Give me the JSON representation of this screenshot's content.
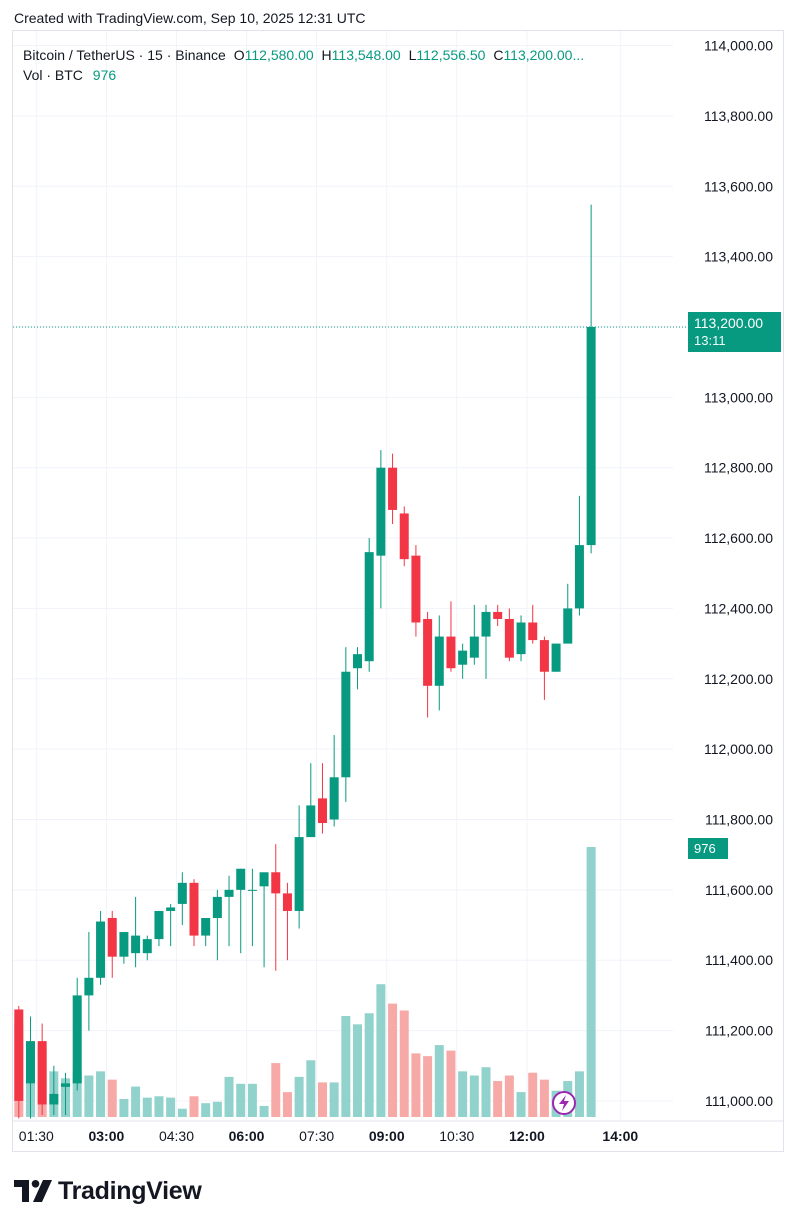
{
  "header": {
    "created_text": "Created with TradingView.com, Sep 10, 2025 12:31 UTC"
  },
  "legend": {
    "symbol": "Bitcoin / TetherUS · 15 · Binance",
    "open_label": "O",
    "open": "112,580.00",
    "high_label": "H",
    "high": "113,548.00",
    "low_label": "L",
    "low": "112,556.50",
    "close_label": "C",
    "close": "113,200.00...",
    "vol_label": "Vol · BTC",
    "vol_value": "976"
  },
  "price_tag": {
    "price": "113,200.00",
    "countdown": "13:11"
  },
  "volume_tag": "976",
  "brand": {
    "name": "TradingView"
  },
  "colors": {
    "up": "#089981",
    "down": "#f23645",
    "up_vol": "#92d2cc",
    "down_vol": "#f7a9a7",
    "grid": "#f0f3fa"
  },
  "chart_data": {
    "type": "candlestick",
    "symbol": "BTCUSDT",
    "interval": "15",
    "y_axis": {
      "range": [
        110960,
        114030
      ],
      "ticks": [
        "114,000.00",
        "113,800.00",
        "113,600.00",
        "113,400.00",
        "113,200.00",
        "113,000.00",
        "112,800.00",
        "112,600.00",
        "112,400.00",
        "112,200.00",
        "112,000.00",
        "111,800.00",
        "111,600.00",
        "111,400.00",
        "111,200.00",
        "111,000.00"
      ]
    },
    "x_axis": {
      "ticks": [
        {
          "label": "01:30",
          "bar": 1.5,
          "bold": false
        },
        {
          "label": "03:00",
          "bar": 7.5,
          "bold": true
        },
        {
          "label": "04:30",
          "bar": 13.5,
          "bold": false
        },
        {
          "label": "06:00",
          "bar": 19.5,
          "bold": true
        },
        {
          "label": "07:30",
          "bar": 25.5,
          "bold": false
        },
        {
          "label": "09:00",
          "bar": 31.5,
          "bold": true
        },
        {
          "label": "10:30",
          "bar": 37.5,
          "bold": false
        },
        {
          "label": "12:00",
          "bar": 43.5,
          "bold": true
        },
        {
          "label": "14:00",
          "bar": 51.5,
          "bold": true
        }
      ]
    },
    "volume_scale_max": 976,
    "candles": [
      {
        "o": 111260,
        "h": 111270,
        "l": 110950,
        "c": 111000,
        "v": 340
      },
      {
        "o": 111050,
        "h": 111240,
        "l": 110950,
        "c": 111170,
        "v": 245
      },
      {
        "o": 111170,
        "h": 111220,
        "l": 110960,
        "c": 110990,
        "v": 250
      },
      {
        "o": 110990,
        "h": 111100,
        "l": 110960,
        "c": 111020,
        "v": 165
      },
      {
        "o": 111040,
        "h": 111080,
        "l": 110960,
        "c": 111050,
        "v": 140
      },
      {
        "o": 111050,
        "h": 111350,
        "l": 111030,
        "c": 111300,
        "v": 165
      },
      {
        "o": 111300,
        "h": 111480,
        "l": 111200,
        "c": 111350,
        "v": 150
      },
      {
        "o": 111350,
        "h": 111540,
        "l": 111330,
        "c": 111510,
        "v": 165
      },
      {
        "o": 111520,
        "h": 111540,
        "l": 111350,
        "c": 111410,
        "v": 135
      },
      {
        "o": 111410,
        "h": 111480,
        "l": 111390,
        "c": 111480,
        "v": 65
      },
      {
        "o": 111420,
        "h": 111580,
        "l": 111380,
        "c": 111470,
        "v": 110
      },
      {
        "o": 111420,
        "h": 111470,
        "l": 111400,
        "c": 111460,
        "v": 70
      },
      {
        "o": 111460,
        "h": 111540,
        "l": 111440,
        "c": 111540,
        "v": 75
      },
      {
        "o": 111540,
        "h": 111560,
        "l": 111440,
        "c": 111550,
        "v": 70
      },
      {
        "o": 111560,
        "h": 111650,
        "l": 111500,
        "c": 111620,
        "v": 30
      },
      {
        "o": 111620,
        "h": 111630,
        "l": 111440,
        "c": 111470,
        "v": 75
      },
      {
        "o": 111470,
        "h": 111520,
        "l": 111440,
        "c": 111520,
        "v": 50
      },
      {
        "o": 111520,
        "h": 111600,
        "l": 111400,
        "c": 111580,
        "v": 55
      },
      {
        "o": 111580,
        "h": 111640,
        "l": 111440,
        "c": 111600,
        "v": 145
      },
      {
        "o": 111600,
        "h": 111660,
        "l": 111420,
        "c": 111660,
        "v": 120
      },
      {
        "o": 111600,
        "h": 111660,
        "l": 111440,
        "c": 111600,
        "v": 120
      },
      {
        "o": 111610,
        "h": 111640,
        "l": 111380,
        "c": 111650,
        "v": 40
      },
      {
        "o": 111650,
        "h": 111730,
        "l": 111370,
        "c": 111590,
        "v": 195
      },
      {
        "o": 111590,
        "h": 111620,
        "l": 111400,
        "c": 111540,
        "v": 90
      },
      {
        "o": 111540,
        "h": 111840,
        "l": 111490,
        "c": 111750,
        "v": 145
      },
      {
        "o": 111750,
        "h": 111960,
        "l": 111750,
        "c": 111840,
        "v": 205
      },
      {
        "o": 111860,
        "h": 111960,
        "l": 111760,
        "c": 111790,
        "v": 125
      },
      {
        "o": 111800,
        "h": 112040,
        "l": 111780,
        "c": 111920,
        "v": 125
      },
      {
        "o": 111920,
        "h": 112290,
        "l": 111850,
        "c": 112220,
        "v": 365
      },
      {
        "o": 112230,
        "h": 112290,
        "l": 112170,
        "c": 112270,
        "v": 335
      },
      {
        "o": 112250,
        "h": 112600,
        "l": 112220,
        "c": 112560,
        "v": 375
      },
      {
        "o": 112550,
        "h": 112850,
        "l": 112400,
        "c": 112800,
        "v": 480
      },
      {
        "o": 112800,
        "h": 112840,
        "l": 112640,
        "c": 112680,
        "v": 410
      },
      {
        "o": 112670,
        "h": 112690,
        "l": 112520,
        "c": 112540,
        "v": 385
      },
      {
        "o": 112550,
        "h": 112580,
        "l": 112320,
        "c": 112360,
        "v": 230
      },
      {
        "o": 112370,
        "h": 112390,
        "l": 112090,
        "c": 112180,
        "v": 220
      },
      {
        "o": 112180,
        "h": 112380,
        "l": 112110,
        "c": 112320,
        "v": 260
      },
      {
        "o": 112320,
        "h": 112420,
        "l": 112220,
        "c": 112230,
        "v": 240
      },
      {
        "o": 112240,
        "h": 112300,
        "l": 112200,
        "c": 112280,
        "v": 165
      },
      {
        "o": 112260,
        "h": 112410,
        "l": 112240,
        "c": 112320,
        "v": 150
      },
      {
        "o": 112320,
        "h": 112410,
        "l": 112200,
        "c": 112390,
        "v": 180
      },
      {
        "o": 112390,
        "h": 112410,
        "l": 112350,
        "c": 112370,
        "v": 130
      },
      {
        "o": 112370,
        "h": 112400,
        "l": 112250,
        "c": 112260,
        "v": 150
      },
      {
        "o": 112270,
        "h": 112380,
        "l": 112250,
        "c": 112360,
        "v": 90
      },
      {
        "o": 112360,
        "h": 112410,
        "l": 112300,
        "c": 112310,
        "v": 160
      },
      {
        "o": 112310,
        "h": 112320,
        "l": 112140,
        "c": 112220,
        "v": 135
      },
      {
        "o": 112220,
        "h": 112300,
        "l": 112220,
        "c": 112300,
        "v": 95
      },
      {
        "o": 112300,
        "h": 112470,
        "l": 112300,
        "c": 112400,
        "v": 130
      },
      {
        "o": 112400,
        "h": 112720,
        "l": 112380,
        "c": 112580,
        "v": 165
      },
      {
        "o": 112580,
        "h": 113548,
        "l": 112556.5,
        "c": 113200,
        "v": 976
      }
    ]
  }
}
